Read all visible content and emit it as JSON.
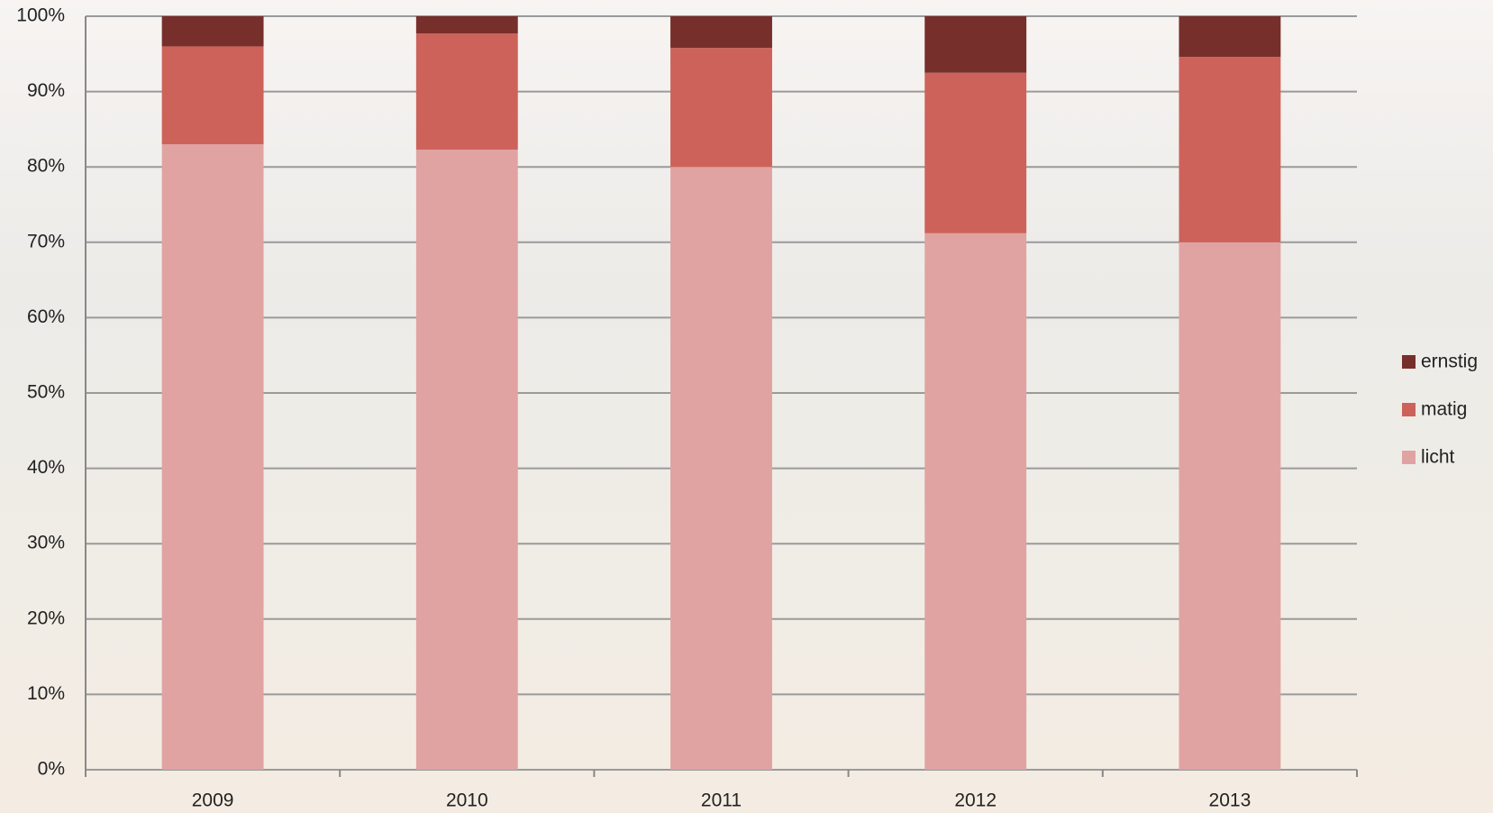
{
  "chart_data": {
    "type": "stacked_bar",
    "categories": [
      "2009",
      "2010",
      "2011",
      "2012",
      "2013"
    ],
    "series": [
      {
        "name": "licht",
        "color": "#e0a3a2",
        "values": [
          83,
          82.3,
          80,
          71.2,
          70
        ]
      },
      {
        "name": "matig",
        "color": "#cd625b",
        "values": [
          13,
          15.4,
          15.8,
          21.3,
          24.6
        ]
      },
      {
        "name": "ernstig",
        "color": "#772f2b",
        "values": [
          4,
          2.3,
          4.2,
          7.5,
          5.4
        ]
      }
    ],
    "ylim": [
      0,
      100
    ],
    "yticks": [
      {
        "value": 0,
        "label": "0%"
      },
      {
        "value": 10,
        "label": "10%"
      },
      {
        "value": 20,
        "label": "20%"
      },
      {
        "value": 30,
        "label": "30%"
      },
      {
        "value": 40,
        "label": "40%"
      },
      {
        "value": 50,
        "label": "50%"
      },
      {
        "value": 60,
        "label": "60%"
      },
      {
        "value": 70,
        "label": "70%"
      },
      {
        "value": 80,
        "label": "80%"
      },
      {
        "value": 90,
        "label": "90%"
      },
      {
        "value": 100,
        "label": "100%"
      }
    ],
    "grid": true,
    "legend": "right"
  }
}
